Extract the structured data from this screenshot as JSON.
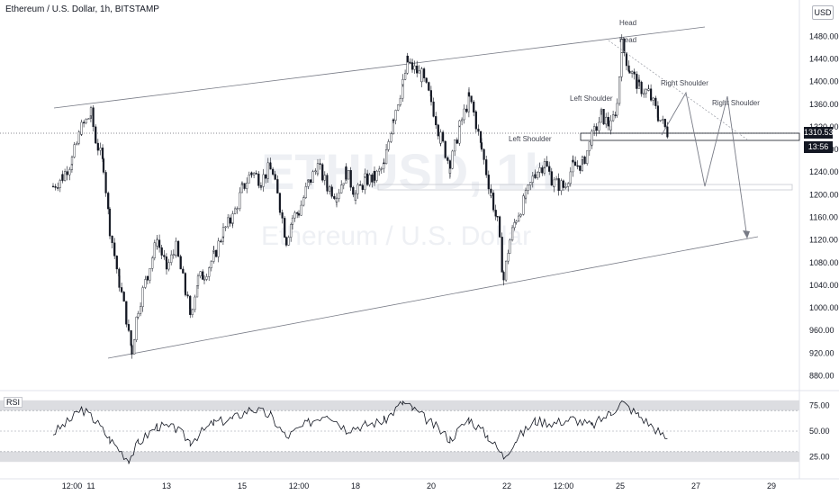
{
  "header": {
    "title": "Ethereum / U.S. Dollar, 1h, BITSTAMP",
    "currency_button": "USD"
  },
  "watermark": {
    "ticker": "ETHUSD, 1h",
    "name": "Ethereum / U.S. Dollar"
  },
  "current": {
    "price_tag": "1310.53",
    "countdown_tag": "13:56"
  },
  "rsi_panel": {
    "label": "RSI"
  },
  "chart_data": [
    {
      "type": "candlestick",
      "title": "Ethereum / U.S. Dollar, 1h, BITSTAMP",
      "y_axis_ticks": [
        "880.00",
        "920.00",
        "960.00",
        "1000.00",
        "1040.00",
        "1080.00",
        "1120.00",
        "1160.00",
        "1200.00",
        "1240.00",
        "1280.00",
        "1320.00",
        "1360.00",
        "1400.00",
        "1440.00",
        "1480.00"
      ],
      "x_axis_ticks": [
        "12:00",
        "11",
        "13",
        "15",
        "12:00",
        "18",
        "20",
        "22",
        "12:00",
        "25",
        "27",
        "29"
      ],
      "close_points": [
        {
          "x": "10 00:00",
          "y": 1215
        },
        {
          "x": "10 06:00",
          "y": 1232
        },
        {
          "x": "10 12:00",
          "y": 1262
        },
        {
          "x": "10 18:00",
          "y": 1318
        },
        {
          "x": "11 00:00",
          "y": 1342
        },
        {
          "x": "11 03:00",
          "y": 1298
        },
        {
          "x": "11 08:00",
          "y": 1252
        },
        {
          "x": "11 12:00",
          "y": 1140
        },
        {
          "x": "11 18:00",
          "y": 1045
        },
        {
          "x": "12 00:00",
          "y": 960
        },
        {
          "x": "12 02:00",
          "y": 925
        },
        {
          "x": "12 06:00",
          "y": 1000
        },
        {
          "x": "12 12:00",
          "y": 1060
        },
        {
          "x": "12 18:00",
          "y": 1120
        },
        {
          "x": "13 00:00",
          "y": 1070
        },
        {
          "x": "13 06:00",
          "y": 1105
        },
        {
          "x": "13 12:00",
          "y": 1030
        },
        {
          "x": "13 15:00",
          "y": 990
        },
        {
          "x": "13 20:00",
          "y": 1050
        },
        {
          "x": "14 00:00",
          "y": 1060
        },
        {
          "x": "14 06:00",
          "y": 1090
        },
        {
          "x": "14 12:00",
          "y": 1135
        },
        {
          "x": "14 18:00",
          "y": 1160
        },
        {
          "x": "15 00:00",
          "y": 1210
        },
        {
          "x": "15 06:00",
          "y": 1240
        },
        {
          "x": "15 12:00",
          "y": 1225
        },
        {
          "x": "15 18:00",
          "y": 1250
        },
        {
          "x": "16 00:00",
          "y": 1180
        },
        {
          "x": "16 04:00",
          "y": 1120
        },
        {
          "x": "16 08:00",
          "y": 1160
        },
        {
          "x": "16 12:00",
          "y": 1170
        },
        {
          "x": "16 18:00",
          "y": 1220
        },
        {
          "x": "17 00:00",
          "y": 1250
        },
        {
          "x": "17 06:00",
          "y": 1215
        },
        {
          "x": "17 12:00",
          "y": 1200
        },
        {
          "x": "17 18:00",
          "y": 1240
        },
        {
          "x": "18 00:00",
          "y": 1200
        },
        {
          "x": "18 06:00",
          "y": 1225
        },
        {
          "x": "18 12:00",
          "y": 1230
        },
        {
          "x": "18 18:00",
          "y": 1250
        },
        {
          "x": "19 00:00",
          "y": 1340
        },
        {
          "x": "19 06:00",
          "y": 1395
        },
        {
          "x": "19 09:00",
          "y": 1435
        },
        {
          "x": "19 12:00",
          "y": 1425
        },
        {
          "x": "19 18:00",
          "y": 1410
        },
        {
          "x": "20 00:00",
          "y": 1365
        },
        {
          "x": "20 06:00",
          "y": 1300
        },
        {
          "x": "20 12:00",
          "y": 1250
        },
        {
          "x": "20 18:00",
          "y": 1320
        },
        {
          "x": "21 00:00",
          "y": 1370
        },
        {
          "x": "21 03:00",
          "y": 1345
        },
        {
          "x": "21 08:00",
          "y": 1280
        },
        {
          "x": "21 14:00",
          "y": 1200
        },
        {
          "x": "21 18:00",
          "y": 1150
        },
        {
          "x": "21 22:00",
          "y": 1050
        },
        {
          "x": "22 02:00",
          "y": 1120
        },
        {
          "x": "22 06:00",
          "y": 1160
        },
        {
          "x": "22 12:00",
          "y": 1195
        },
        {
          "x": "22 18:00",
          "y": 1240
        },
        {
          "x": "23 00:00",
          "y": 1255
        },
        {
          "x": "23 06:00",
          "y": 1220
        },
        {
          "x": "23 12:00",
          "y": 1215
        },
        {
          "x": "23 18:00",
          "y": 1250
        },
        {
          "x": "24 00:00",
          "y": 1255
        },
        {
          "x": "24 06:00",
          "y": 1300
        },
        {
          "x": "24 12:00",
          "y": 1340
        },
        {
          "x": "24 18:00",
          "y": 1320
        },
        {
          "x": "24 22:00",
          "y": 1360
        },
        {
          "x": "25 01:00",
          "y": 1465
        },
        {
          "x": "25 06:00",
          "y": 1420
        },
        {
          "x": "25 12:00",
          "y": 1390
        },
        {
          "x": "25 18:00",
          "y": 1380
        },
        {
          "x": "26 00:00",
          "y": 1340
        },
        {
          "x": "26 06:00",
          "y": 1310
        }
      ],
      "rsi": {
        "ticks": [
          "75.00",
          "50.00",
          "25.00"
        ],
        "bands": [
          70,
          30
        ],
        "points": [
          {
            "x": "10 00:00",
            "y": 48
          },
          {
            "x": "10 12:00",
            "y": 62
          },
          {
            "x": "10 18:00",
            "y": 72
          },
          {
            "x": "11 03:00",
            "y": 60
          },
          {
            "x": "11 12:00",
            "y": 42
          },
          {
            "x": "12 00:00",
            "y": 22
          },
          {
            "x": "12 06:00",
            "y": 38
          },
          {
            "x": "12 18:00",
            "y": 55
          },
          {
            "x": "13 06:00",
            "y": 52
          },
          {
            "x": "13 15:00",
            "y": 40
          },
          {
            "x": "14 06:00",
            "y": 58
          },
          {
            "x": "14 18:00",
            "y": 62
          },
          {
            "x": "15 06:00",
            "y": 72
          },
          {
            "x": "15 18:00",
            "y": 65
          },
          {
            "x": "16 04:00",
            "y": 44
          },
          {
            "x": "16 18:00",
            "y": 58
          },
          {
            "x": "17 06:00",
            "y": 68
          },
          {
            "x": "17 18:00",
            "y": 52
          },
          {
            "x": "18 06:00",
            "y": 56
          },
          {
            "x": "18 18:00",
            "y": 60
          },
          {
            "x": "19 06:00",
            "y": 78
          },
          {
            "x": "19 12:00",
            "y": 72
          },
          {
            "x": "20 00:00",
            "y": 58
          },
          {
            "x": "20 12:00",
            "y": 42
          },
          {
            "x": "21 00:00",
            "y": 62
          },
          {
            "x": "21 12:00",
            "y": 45
          },
          {
            "x": "21 22:00",
            "y": 25
          },
          {
            "x": "22 06:00",
            "y": 42
          },
          {
            "x": "22 18:00",
            "y": 60
          },
          {
            "x": "23 06:00",
            "y": 58
          },
          {
            "x": "23 18:00",
            "y": 62
          },
          {
            "x": "24 06:00",
            "y": 55
          },
          {
            "x": "24 18:00",
            "y": 68
          },
          {
            "x": "25 01:00",
            "y": 78
          },
          {
            "x": "25 12:00",
            "y": 65
          },
          {
            "x": "26 00:00",
            "y": 50
          },
          {
            "x": "26 06:00",
            "y": 42
          }
        ]
      }
    }
  ],
  "annotations": {
    "head_1": "Head",
    "head_2": "Head",
    "left_shoulder_1": "Left Shoulder",
    "left_shoulder_2": "Left Shoulder",
    "right_shoulder_1": "Right Shoulder",
    "right_shoulder_2": "Right Shoulder"
  },
  "colors": {
    "up": "#131722",
    "down": "#131722",
    "line": "#131722",
    "grid": "#f0f3fa",
    "band": "#dcdde1"
  }
}
